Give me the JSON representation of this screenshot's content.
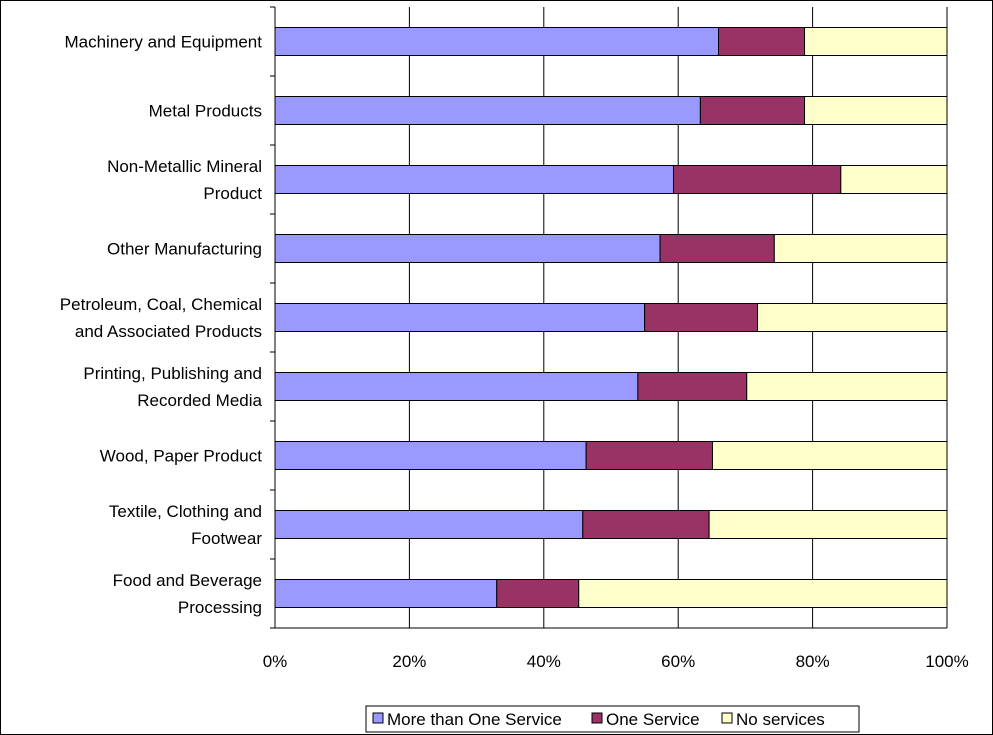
{
  "chart_data": {
    "type": "bar",
    "orientation": "horizontal",
    "stacked": "percent",
    "categories": [
      [
        "Machinery and Equipment"
      ],
      [
        "Metal Products"
      ],
      [
        "Non-Metallic Mineral",
        "Product"
      ],
      [
        "Other Manufacturing"
      ],
      [
        "Petroleum, Coal, Chemical",
        "and Associated Products"
      ],
      [
        "Printing, Publishing and",
        "Recorded Media"
      ],
      [
        "Wood, Paper Product"
      ],
      [
        "Textile, Clothing and",
        "Footwear"
      ],
      [
        "Food and Beverage",
        "Processing"
      ]
    ],
    "series": [
      {
        "name": "More than One Service",
        "color": "#9999ff",
        "values": [
          66,
          63.3,
          59.3,
          57.3,
          55,
          54,
          46.3,
          45.8,
          33
        ]
      },
      {
        "name": "One Service",
        "color": "#993366",
        "values": [
          12.8,
          15.5,
          24.9,
          17,
          16.8,
          16.2,
          18.8,
          18.8,
          12.2
        ]
      },
      {
        "name": "No services",
        "color": "#ffffcc",
        "values": [
          21.2,
          21.2,
          15.8,
          25.7,
          28.2,
          29.8,
          34.9,
          35.4,
          54.8
        ]
      }
    ],
    "xlim": [
      0,
      100
    ],
    "xticks": [
      "0%",
      "20%",
      "40%",
      "60%",
      "80%",
      "100%"
    ],
    "grid": true,
    "legend": "bottom"
  }
}
